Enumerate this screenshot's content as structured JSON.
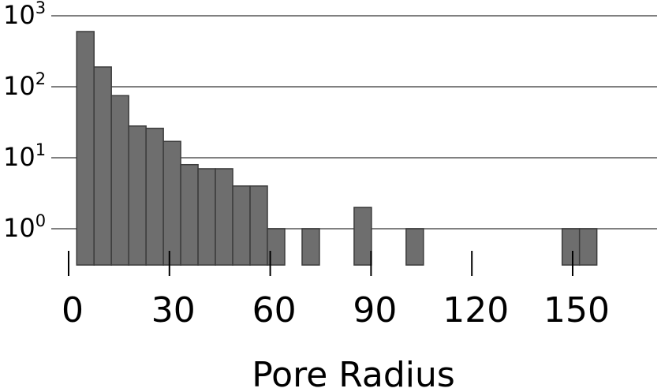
{
  "chart_data": {
    "type": "bar",
    "xlabel": "Pore Radius",
    "ylabel": "",
    "y_scale": "log",
    "ylim": [
      0.5,
      1000
    ],
    "y_ticks": [
      {
        "base": "10",
        "exp": "0",
        "value": 1
      },
      {
        "base": "10",
        "exp": "1",
        "value": 10
      },
      {
        "base": "10",
        "exp": "2",
        "value": 100
      },
      {
        "base": "10",
        "exp": "3",
        "value": 1000
      }
    ],
    "xlim": [
      -2.5,
      168
    ],
    "x_ticks": [
      0,
      30,
      60,
      90,
      120,
      150
    ],
    "x_tick_labels": [
      "0",
      "30",
      "60",
      "90",
      "120",
      "150"
    ],
    "bin_width": 5.16,
    "bins": [
      {
        "x0": 2.4,
        "count": 600
      },
      {
        "x0": 7.56,
        "count": 190
      },
      {
        "x0": 12.72,
        "count": 75
      },
      {
        "x0": 17.88,
        "count": 28
      },
      {
        "x0": 23.04,
        "count": 26
      },
      {
        "x0": 28.2,
        "count": 17
      },
      {
        "x0": 33.36,
        "count": 8
      },
      {
        "x0": 38.52,
        "count": 7
      },
      {
        "x0": 43.68,
        "count": 7
      },
      {
        "x0": 48.84,
        "count": 4
      },
      {
        "x0": 54.0,
        "count": 4
      },
      {
        "x0": 59.16,
        "count": 1
      },
      {
        "x0": 69.48,
        "count": 1
      },
      {
        "x0": 84.96,
        "count": 2
      },
      {
        "x0": 100.44,
        "count": 1
      },
      {
        "x0": 146.88,
        "count": 1
      },
      {
        "x0": 152.04,
        "count": 1
      }
    ],
    "grid": "horizontal",
    "colors": {
      "bar_fill": "#6e6e6e",
      "bar_edge": "#3c3c3c",
      "grid": "#808080"
    }
  }
}
